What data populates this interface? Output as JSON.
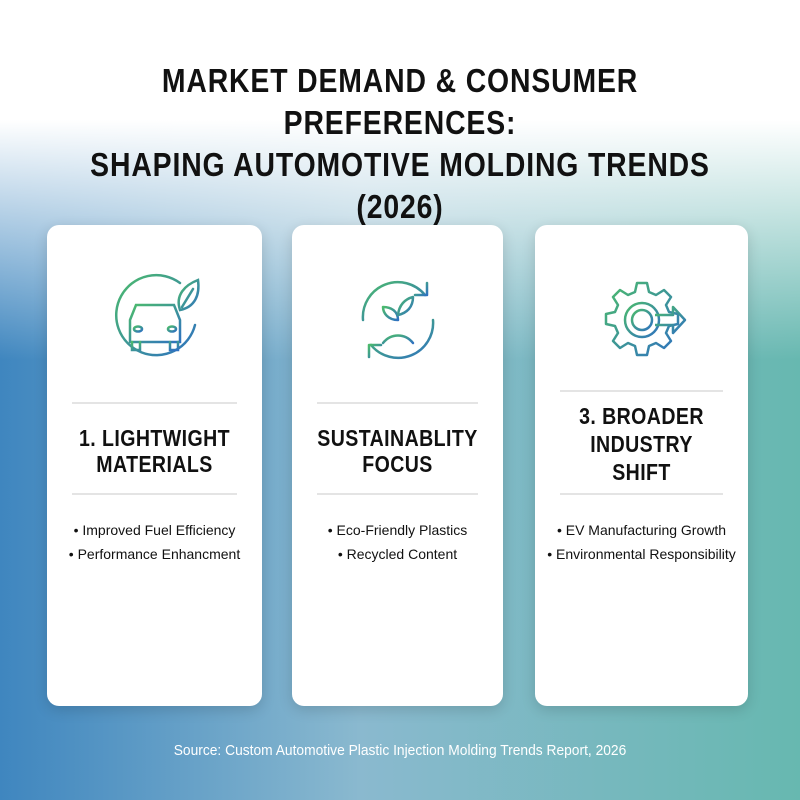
{
  "title": {
    "line1": "MARKET DEMAND & CONSUMER PREFERENCES:",
    "line2": "SHAPING AUTOMOTIVE MOLDING TRENDS (2026)"
  },
  "cards": [
    {
      "icon": "eco-car-icon",
      "heading_line1": "1. LIGHTWIGHT",
      "heading_line2": "MATERIALS",
      "bullets": [
        "• Improved Fuel Efficiency",
        "• Performance Enhancment"
      ]
    },
    {
      "icon": "recycle-sprout-icon",
      "heading_line1": "SUSTAINABLITY",
      "heading_line2": "FOCUS",
      "bullets": [
        "• Eco-Friendly Plastics",
        "• Recycled Content"
      ]
    },
    {
      "icon": "gear-arrow-icon",
      "heading_line1": "3. BROADER",
      "heading_line2": "INDUSTRY",
      "heading_line3": "SHIFT",
      "bullets": [
        "• EV Manufacturing Growth",
        "• Environmental Responsibility"
      ]
    }
  ],
  "source": "Source: Custom Automotive Plastic Injection Molding Trends Report, 2026",
  "colors": {
    "icon_gradient_start": "#4cbb6c",
    "icon_gradient_end": "#2f72c0"
  }
}
